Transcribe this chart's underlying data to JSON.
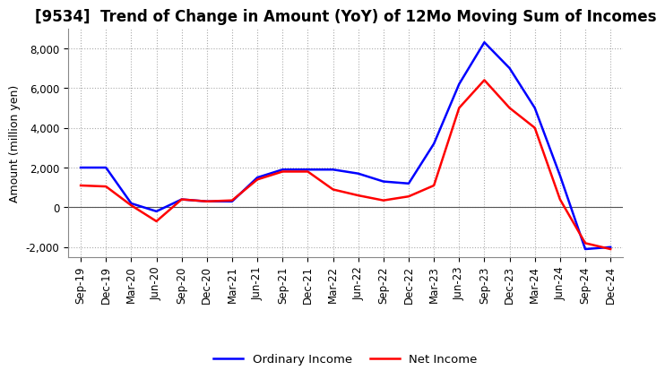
{
  "title": "[9534]  Trend of Change in Amount (YoY) of 12Mo Moving Sum of Incomes",
  "ylabel": "Amount (million yen)",
  "x_labels": [
    "Sep-19",
    "Dec-19",
    "Mar-20",
    "Jun-20",
    "Sep-20",
    "Dec-20",
    "Mar-21",
    "Jun-21",
    "Sep-21",
    "Dec-21",
    "Mar-22",
    "Jun-22",
    "Sep-22",
    "Dec-22",
    "Mar-23",
    "Jun-23",
    "Sep-23",
    "Dec-23",
    "Mar-24",
    "Jun-24",
    "Sep-24",
    "Dec-24"
  ],
  "ordinary_income": [
    2000,
    2000,
    200,
    -200,
    400,
    300,
    300,
    1500,
    1900,
    1900,
    1900,
    1700,
    1300,
    1200,
    3200,
    6200,
    8300,
    7000,
    5000,
    1600,
    -2100,
    -2000
  ],
  "net_income": [
    1100,
    1050,
    100,
    -700,
    400,
    300,
    350,
    1400,
    1800,
    1800,
    900,
    600,
    350,
    550,
    1100,
    5000,
    6400,
    5000,
    4000,
    400,
    -1800,
    -2100
  ],
  "ordinary_color": "#0000ff",
  "net_color": "#ff0000",
  "line_width": 1.8,
  "ylim": [
    -2500,
    9000
  ],
  "yticks": [
    -2000,
    0,
    2000,
    4000,
    6000,
    8000
  ],
  "grid_color": "#aaaaaa",
  "grid_linestyle": ":",
  "background_color": "#ffffff",
  "legend_labels": [
    "Ordinary Income",
    "Net Income"
  ],
  "title_fontsize": 12,
  "tick_fontsize": 8.5,
  "ylabel_fontsize": 9
}
